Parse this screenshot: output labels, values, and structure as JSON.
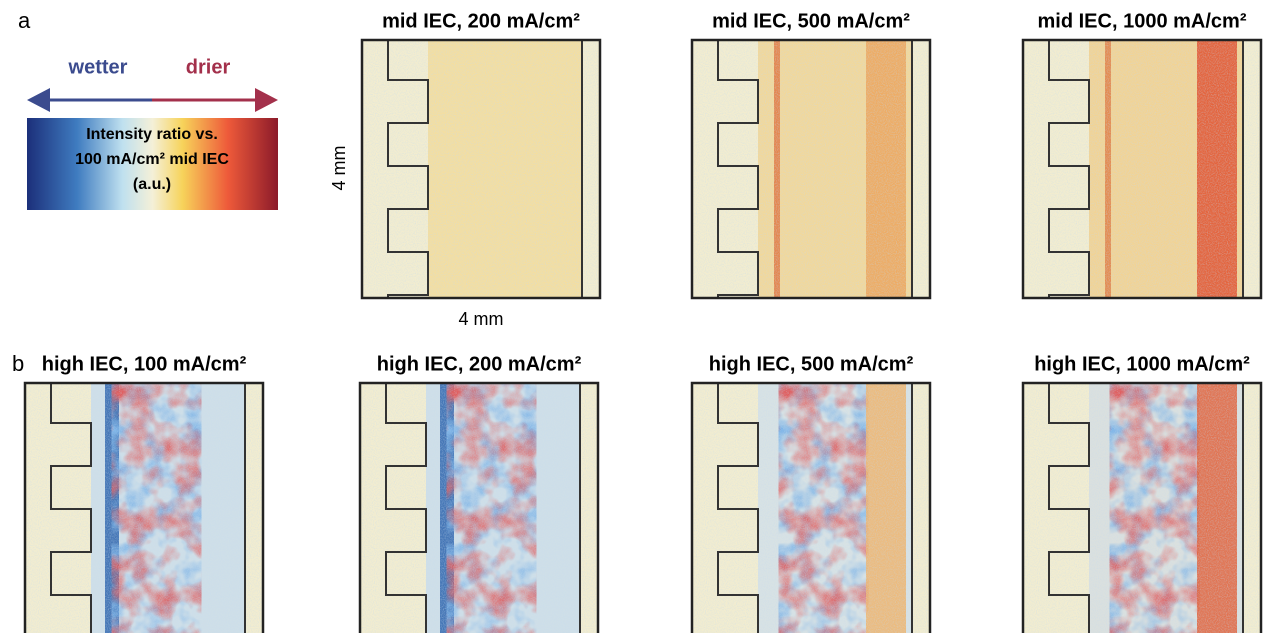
{
  "panel_a": {
    "label": "a",
    "legend": {
      "wetter": "wetter",
      "drier": "drier",
      "caption": [
        "Intensity ratio vs.",
        "100 mA/cm² mid IEC",
        "(a.u.)"
      ]
    },
    "scale": {
      "vertical": "4 mm",
      "horizontal": "4 mm"
    },
    "images": [
      {
        "title": "mid IEC, 200 mA/cm²"
      },
      {
        "title": "mid IEC, 500 mA/cm²"
      },
      {
        "title": "mid IEC, 1000 mA/cm²"
      }
    ]
  },
  "panel_b": {
    "label": "b",
    "images": [
      {
        "title": "high IEC, 100 mA/cm²"
      },
      {
        "title": "high IEC, 200 mA/cm²"
      },
      {
        "title": "high IEC, 500 mA/cm²"
      },
      {
        "title": "high IEC, 1000 mA/cm²"
      }
    ]
  }
}
